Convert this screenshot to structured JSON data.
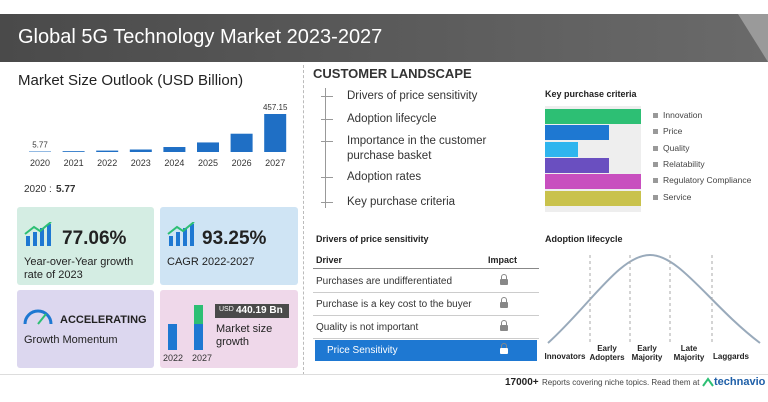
{
  "header": {
    "title": "Global 5G Technology Market 2023-2027"
  },
  "chart_data": {
    "type": "bar",
    "title": "Market Size Outlook (USD Billion)",
    "categories": [
      "2020",
      "2021",
      "2022",
      "2023",
      "2024",
      "2025",
      "2026",
      "2027"
    ],
    "values": [
      5.77,
      10,
      17,
      30,
      60,
      115,
      220,
      457.15
    ],
    "value_labels": [
      "5.77",
      null,
      null,
      null,
      null,
      null,
      null,
      "457.15"
    ],
    "color": "#1f6fc5"
  },
  "base_value": {
    "label": "2020 :",
    "value": "5.77"
  },
  "tiles": [
    {
      "value": "77.06%",
      "label": "Year-over-Year growth rate of 2023"
    },
    {
      "value": "93.25%",
      "label": "CAGR 2022-2027"
    },
    {
      "value": "ACCELERATING",
      "label": "Growth Momentum"
    },
    {
      "unit": "USD",
      "value": "440.19 Bn",
      "label": "Market size growth",
      "categories": [
        "2022",
        "2027"
      ]
    }
  ],
  "customer_landscape": {
    "title": "CUSTOMER LANDSCAPE",
    "items": [
      "Drivers of price sensitivity",
      "Adoption lifecycle",
      "Importance in the customer purchase basket",
      "Adoption rates",
      "Key purchase criteria"
    ]
  },
  "key_purchase_criteria": {
    "title": "Key purchase criteria",
    "items": [
      {
        "name": "Innovation",
        "color": "#2dbf74",
        "value": 100
      },
      {
        "name": "Price",
        "color": "#1e78d2",
        "value": 67
      },
      {
        "name": "Quality",
        "color": "#2fb5ee",
        "value": 34
      },
      {
        "name": "Relatability",
        "color": "#6a4fc0",
        "value": 67
      },
      {
        "name": "Regulatory Compliance",
        "color": "#c84fbf",
        "value": 100
      },
      {
        "name": "Service",
        "color": "#c9c24c",
        "value": 100
      }
    ]
  },
  "drivers": {
    "title": "Drivers of price sensitivity",
    "columns": [
      "Driver",
      "Impact"
    ],
    "rows": [
      "Purchases are undifferentiated",
      "Purchase is a key cost to the buyer",
      "Quality is not important",
      "Price Sensitivity"
    ]
  },
  "adoption": {
    "title": "Adoption lifecycle",
    "stages": [
      "Innovators",
      "Early Adopters",
      "Early Majority",
      "Late Majority",
      "Laggards"
    ]
  },
  "footer": {
    "count": "17000+",
    "text": "Reports covering niche topics. Read them at",
    "brand": "technavio"
  }
}
